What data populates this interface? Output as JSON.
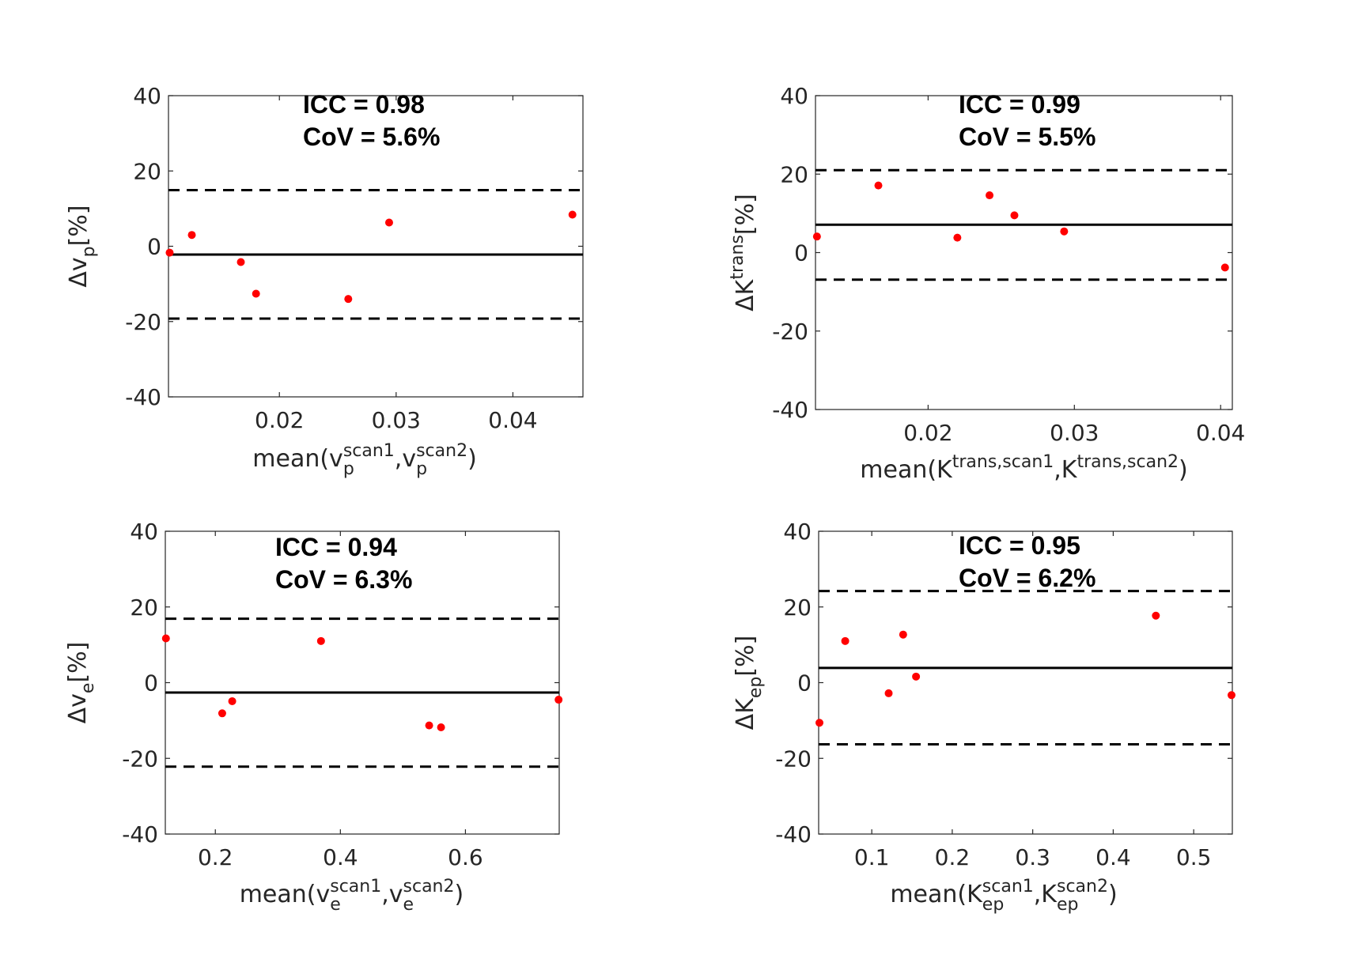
{
  "chart_data": [
    {
      "type": "scatter",
      "title": "",
      "stats": {
        "icc": "ICC = 0.98",
        "cov": "CoV = 5.6%"
      },
      "ylabel": {
        "delta": "Δ",
        "base": "v",
        "sub": "p",
        "sup": "",
        "unit": "[%]"
      },
      "xlabel": {
        "prefix": "mean(",
        "a_base": "v",
        "a_sup": "scan1",
        "a_sub": "p",
        "sep": ",",
        "b_base": "v",
        "b_sup": "scan2",
        "b_sub": "p",
        "suffix": ")"
      },
      "xlim": [
        0.0105,
        0.046
      ],
      "ylim": [
        -40,
        40
      ],
      "xticks": [
        0.02,
        0.03,
        0.04
      ],
      "xtick_labels": [
        "0.02",
        "0.03",
        "0.04"
      ],
      "yticks": [
        40,
        20,
        0,
        -20,
        -40
      ],
      "ytick_labels": [
        "40",
        "20",
        "0",
        "-20",
        "-40"
      ],
      "mean_line": -2.2,
      "limits": [
        14.9,
        -19.2
      ],
      "points": [
        {
          "x": 0.0106,
          "y": -1.7
        },
        {
          "x": 0.0125,
          "y": 3.0
        },
        {
          "x": 0.0167,
          "y": -4.2
        },
        {
          "x": 0.018,
          "y": -12.6
        },
        {
          "x": 0.0259,
          "y": -14.0
        },
        {
          "x": 0.0294,
          "y": 6.3
        },
        {
          "x": 0.0451,
          "y": 8.4
        }
      ]
    },
    {
      "type": "scatter",
      "title": "",
      "stats": {
        "icc": "ICC = 0.99",
        "cov": "CoV = 5.5%"
      },
      "ylabel": {
        "delta": "Δ",
        "base": "K",
        "sub": "",
        "sup": "trans",
        "unit": "[%]"
      },
      "xlabel": {
        "prefix": "mean(",
        "a_base": "K",
        "a_sup": "trans,scan1",
        "a_sub": "",
        "sep": ",",
        "b_base": "K",
        "b_sup": "trans,scan2",
        "b_sub": "",
        "suffix": ")"
      },
      "xlim": [
        0.0123,
        0.0408
      ],
      "ylim": [
        -40,
        40
      ],
      "xticks": [
        0.02,
        0.03,
        0.04
      ],
      "xtick_labels": [
        "0.02",
        "0.03",
        "0.04"
      ],
      "yticks": [
        40,
        20,
        0,
        -20,
        -40
      ],
      "ytick_labels": [
        "40",
        "20",
        "0",
        "-20",
        "-40"
      ],
      "mean_line": 7.1,
      "limits": [
        21.0,
        -6.9
      ],
      "points": [
        {
          "x": 0.0124,
          "y": 4.1
        },
        {
          "x": 0.0166,
          "y": 17.1
        },
        {
          "x": 0.022,
          "y": 3.8
        },
        {
          "x": 0.0242,
          "y": 14.6
        },
        {
          "x": 0.0259,
          "y": 9.5
        },
        {
          "x": 0.0293,
          "y": 5.4
        },
        {
          "x": 0.0403,
          "y": -3.8
        }
      ]
    },
    {
      "type": "scatter",
      "title": "",
      "stats": {
        "icc": "ICC = 0.94",
        "cov": "CoV = 6.3%"
      },
      "ylabel": {
        "delta": "Δ",
        "base": "v",
        "sub": "e",
        "sup": "",
        "unit": "[%]"
      },
      "xlabel": {
        "prefix": "mean(",
        "a_base": "v",
        "a_sup": "scan1",
        "a_sub": "e",
        "sep": ",",
        "b_base": "v",
        "b_sup": "scan2",
        "b_sub": "e",
        "suffix": ")"
      },
      "xlim": [
        0.12,
        0.75
      ],
      "ylim": [
        -40,
        40
      ],
      "xticks": [
        0.2,
        0.4,
        0.6
      ],
      "xtick_labels": [
        "0.2",
        "0.4",
        "0.6"
      ],
      "yticks": [
        40,
        20,
        0,
        -20,
        -40
      ],
      "ytick_labels": [
        "40",
        "20",
        "0",
        "-20",
        "-40"
      ],
      "mean_line": -2.6,
      "limits": [
        16.9,
        -22.2
      ],
      "points": [
        {
          "x": 0.121,
          "y": 11.7
        },
        {
          "x": 0.211,
          "y": -8.1
        },
        {
          "x": 0.227,
          "y": -4.9
        },
        {
          "x": 0.369,
          "y": 11.0
        },
        {
          "x": 0.542,
          "y": -11.3
        },
        {
          "x": 0.561,
          "y": -11.8
        },
        {
          "x": 0.749,
          "y": -4.5
        }
      ]
    },
    {
      "type": "scatter",
      "title": "",
      "stats": {
        "icc": "ICC = 0.95",
        "cov": "CoV = 6.2%"
      },
      "ylabel": {
        "delta": "Δ",
        "base": "K",
        "sub": "ep",
        "sup": "",
        "unit": "[%]"
      },
      "xlabel": {
        "prefix": "mean(",
        "a_base": "K",
        "a_sup": "scan1",
        "a_sub": "ep",
        "sep": ",",
        "b_base": "K",
        "b_sup": "scan2",
        "b_sub": "ep",
        "suffix": ")"
      },
      "xlim": [
        0.034,
        0.548
      ],
      "ylim": [
        -40,
        40
      ],
      "xticks": [
        0.1,
        0.2,
        0.3,
        0.4,
        0.5
      ],
      "xtick_labels": [
        "0.1",
        "0.2",
        "0.3",
        "0.4",
        "0.5"
      ],
      "yticks": [
        40,
        20,
        0,
        -20,
        -40
      ],
      "ytick_labels": [
        "40",
        "20",
        "0",
        "-20",
        "-40"
      ],
      "mean_line": 3.9,
      "limits": [
        24.2,
        -16.3
      ],
      "points": [
        {
          "x": 0.035,
          "y": -10.6
        },
        {
          "x": 0.067,
          "y": 11.0
        },
        {
          "x": 0.121,
          "y": -2.8
        },
        {
          "x": 0.139,
          "y": 12.7
        },
        {
          "x": 0.155,
          "y": 1.6
        },
        {
          "x": 0.453,
          "y": 17.7
        },
        {
          "x": 0.547,
          "y": -3.3
        }
      ]
    }
  ]
}
